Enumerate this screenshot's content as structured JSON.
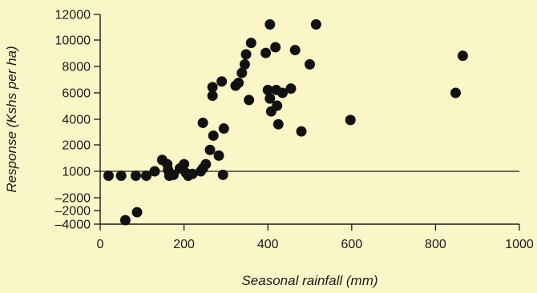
{
  "chart_data": {
    "type": "scatter",
    "title": "",
    "xlabel": "Seasonal rainfall (mm)",
    "ylabel": "Response (Kshs per ha)",
    "x_ticks": [
      0,
      200,
      400,
      600,
      800,
      1000
    ],
    "y_tick_labels": [
      "12000",
      "10000",
      "8000",
      "6000",
      "4000",
      "2000",
      "1000",
      "–2000",
      "–2000",
      "–4000"
    ],
    "xlim": [
      0,
      1000
    ],
    "reference_line": 1000,
    "marker_color": "#111111",
    "background_color": "#fbf6c8",
    "grid": false,
    "legend": "none",
    "series": [
      {
        "points": [
          {
            "x": 20,
            "y": 500
          },
          {
            "x": 50,
            "y": 500
          },
          {
            "x": 85,
            "y": 500
          },
          {
            "x": 110,
            "y": 500
          },
          {
            "x": 130,
            "y": 1000
          },
          {
            "x": 148,
            "y": 1800
          },
          {
            "x": 160,
            "y": 1500
          },
          {
            "x": 162,
            "y": 1100
          },
          {
            "x": 165,
            "y": 500
          },
          {
            "x": 175,
            "y": 600
          },
          {
            "x": 190,
            "y": 1200
          },
          {
            "x": 200,
            "y": 1500
          },
          {
            "x": 205,
            "y": 800
          },
          {
            "x": 210,
            "y": 500
          },
          {
            "x": 220,
            "y": 700
          },
          {
            "x": 240,
            "y": 1000
          },
          {
            "x": 245,
            "y": 1200
          },
          {
            "x": 252,
            "y": 1500
          },
          {
            "x": 262,
            "y": 2500
          },
          {
            "x": 270,
            "y": 3500
          },
          {
            "x": 283,
            "y": 2100
          },
          {
            "x": 295,
            "y": 4000
          },
          {
            "x": 293,
            "y": 600
          },
          {
            "x": 245,
            "y": 4400
          },
          {
            "x": 268,
            "y": 6300
          },
          {
            "x": 268,
            "y": 6900
          },
          {
            "x": 290,
            "y": 7300
          },
          {
            "x": 323,
            "y": 7000
          },
          {
            "x": 330,
            "y": 7200
          },
          {
            "x": 338,
            "y": 7900
          },
          {
            "x": 345,
            "y": 8500
          },
          {
            "x": 348,
            "y": 9200
          },
          {
            "x": 355,
            "y": 6000
          },
          {
            "x": 360,
            "y": 10000
          },
          {
            "x": 395,
            "y": 9300
          },
          {
            "x": 400,
            "y": 6700
          },
          {
            "x": 405,
            "y": 6100
          },
          {
            "x": 408,
            "y": 5200
          },
          {
            "x": 418,
            "y": 9700
          },
          {
            "x": 420,
            "y": 6700
          },
          {
            "x": 422,
            "y": 5600
          },
          {
            "x": 425,
            "y": 4300
          },
          {
            "x": 435,
            "y": 6500
          },
          {
            "x": 455,
            "y": 6800
          },
          {
            "x": 465,
            "y": 9500
          },
          {
            "x": 480,
            "y": 3800
          },
          {
            "x": 500,
            "y": 8500
          },
          {
            "x": 405,
            "y": 11300
          },
          {
            "x": 515,
            "y": 11300
          },
          {
            "x": 597,
            "y": 4600
          },
          {
            "x": 848,
            "y": 6500
          },
          {
            "x": 865,
            "y": 9100
          },
          {
            "x": 60,
            "y": -3700
          },
          {
            "x": 88,
            "y": -3100
          }
        ]
      }
    ]
  }
}
